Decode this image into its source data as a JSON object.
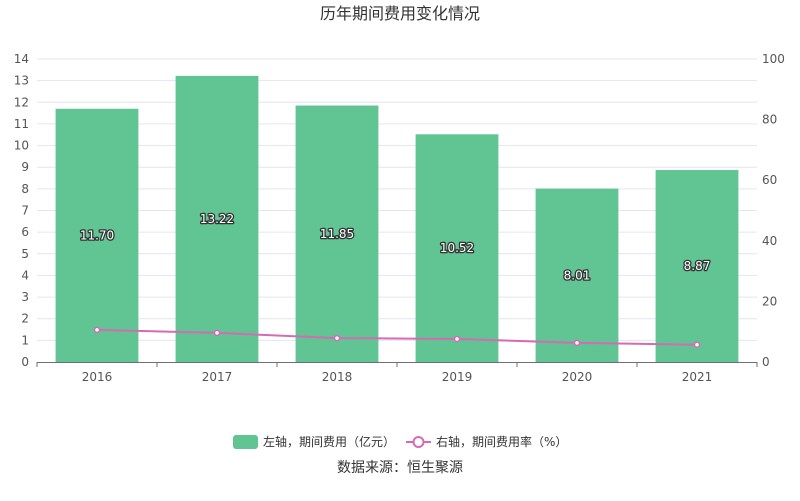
{
  "chart_data": {
    "type": "bar",
    "title": "历年期间费用变化情况",
    "categories": [
      "2016",
      "2017",
      "2018",
      "2019",
      "2020",
      "2021"
    ],
    "series": [
      {
        "name": "左轴，期间费用（亿元）",
        "type": "bar",
        "axis": "left",
        "values": [
          11.7,
          13.22,
          11.85,
          10.52,
          8.01,
          8.87
        ],
        "labels": [
          "11.70",
          "13.22",
          "11.85",
          "10.52",
          "8.01",
          "8.87"
        ],
        "color": "#60c493"
      },
      {
        "name": "右轴，期间费用率（%）",
        "type": "line",
        "axis": "right",
        "values": [
          10.6,
          9.6,
          7.9,
          7.6,
          6.3,
          5.7
        ],
        "color": "#d56bb4"
      }
    ],
    "left_axis": {
      "ylim": [
        0,
        14
      ],
      "ticks": [
        "0",
        "1",
        "2",
        "3",
        "4",
        "5",
        "6",
        "7",
        "8",
        "9",
        "10",
        "11",
        "12",
        "13",
        "14"
      ]
    },
    "right_axis": {
      "ylim": [
        0,
        100
      ],
      "ticks": [
        "0",
        "20",
        "40",
        "60",
        "80",
        "100"
      ]
    },
    "grid": true,
    "legend_position": "bottom"
  },
  "source_text": "数据来源：恒生聚源"
}
